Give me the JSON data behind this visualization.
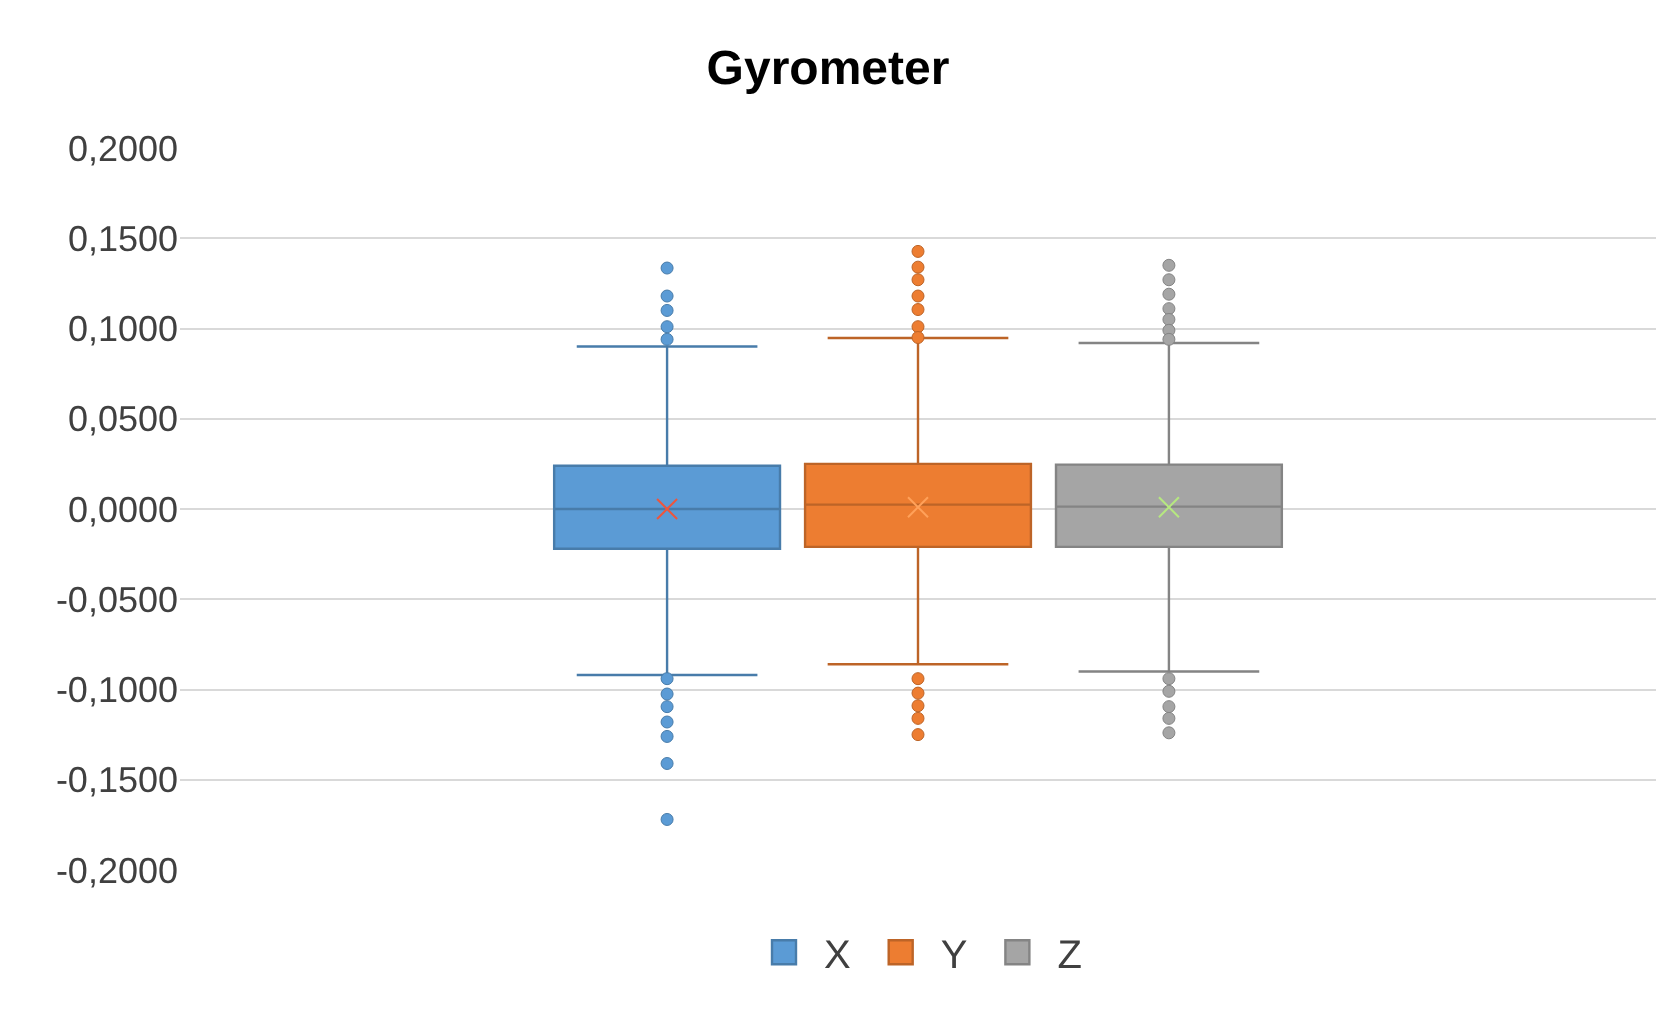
{
  "chart_data": {
    "type": "box",
    "title": "Gyrometer",
    "categories": [
      null
    ],
    "series": [
      {
        "name": "X",
        "color": "#5b9bd5",
        "boxes": [
          {
            "low": -0.092,
            "q1": -0.022,
            "median": 0.0,
            "q3": 0.024,
            "high": 0.09,
            "mean": 0.0,
            "outliers": [
              0.1335,
              0.118,
              0.11,
              0.101,
              0.094,
              -0.094,
              -0.1025,
              -0.1095,
              -0.118,
              -0.126,
              -0.141,
              -0.172
            ]
          }
        ]
      },
      {
        "name": "Y",
        "color": "#ed7d31",
        "boxes": [
          {
            "low": -0.086,
            "q1": -0.021,
            "median": 0.0024,
            "q3": 0.025,
            "high": 0.0947,
            "mean": 0.001,
            "outliers": [
              0.1427,
              0.134,
              0.127,
              0.118,
              0.1105,
              0.101,
              0.095,
              -0.094,
              -0.102,
              -0.109,
              -0.116,
              -0.125
            ]
          }
        ]
      },
      {
        "name": "Z",
        "color": "#a5a5a5",
        "boxes": [
          {
            "low": -0.09,
            "q1": -0.021,
            "median": 0.0013,
            "q3": 0.0246,
            "high": 0.092,
            "mean": 0.001,
            "outliers": [
              0.135,
              0.127,
              0.119,
              0.111,
              0.105,
              0.099,
              0.094,
              -0.094,
              -0.101,
              -0.1095,
              -0.116,
              -0.124
            ]
          }
        ]
      }
    ],
    "ylim": [
      -0.2,
      0.2
    ],
    "yticks": [
      {
        "value": -0.2,
        "label": "-0,2000"
      },
      {
        "value": -0.15,
        "label": "-0,1500"
      },
      {
        "value": -0.1,
        "label": "-0,1000"
      },
      {
        "value": -0.05,
        "label": "-0,0500"
      },
      {
        "value": 0,
        "label": "0,0000"
      },
      {
        "value": 0.05,
        "label": "0,0500"
      },
      {
        "value": 0.1,
        "label": "0,1000"
      },
      {
        "value": 0.15,
        "label": "0,1500"
      },
      {
        "value": 0.2,
        "label": "0,2000"
      }
    ],
    "grid": "y",
    "legend": "bottom",
    "marker": "circle"
  }
}
